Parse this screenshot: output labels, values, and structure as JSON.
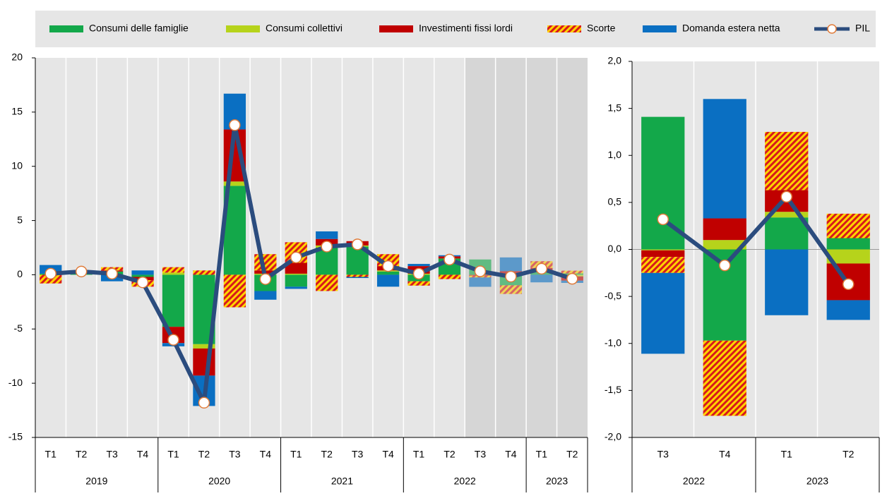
{
  "chart_data": [
    {
      "type": "bar",
      "stacked": true,
      "categories": [
        "T1",
        "T2",
        "T3",
        "T4",
        "T1",
        "T2",
        "T3",
        "T4",
        "T1",
        "T2",
        "T3",
        "T4",
        "T1",
        "T2",
        "T3",
        "T4",
        "T1",
        "T2"
      ],
      "years": [
        "2019",
        "2019",
        "2019",
        "2019",
        "2020",
        "2020",
        "2020",
        "2020",
        "2021",
        "2021",
        "2021",
        "2021",
        "2022",
        "2022",
        "2022",
        "2022",
        "2023",
        "2023"
      ],
      "series": [
        {
          "name": "Consumi delle famiglie",
          "color": "#13a84a",
          "values": [
            0.1,
            0.1,
            0.3,
            -0.2,
            -4.8,
            -6.4,
            8.2,
            -1.5,
            -1.1,
            2.5,
            2.6,
            0.3,
            -0.6,
            1.5,
            1.41,
            -0.97,
            0.34,
            0.12
          ]
        },
        {
          "name": "Consumi collettivi",
          "color": "#b6d31b",
          "values": [
            0,
            0,
            0,
            0,
            0.2,
            -0.4,
            0.4,
            0.1,
            0.1,
            0.2,
            0.1,
            0.1,
            0.1,
            0,
            -0.01,
            0.1,
            0.06,
            -0.15
          ]
        },
        {
          "name": "Investimenti fissi lordi",
          "color": "#c00000",
          "values": [
            0,
            0.1,
            0.1,
            -0.3,
            -1.5,
            -2.5,
            4.8,
            0.3,
            1.0,
            0.6,
            0.4,
            0.4,
            0.7,
            0.2,
            -0.07,
            0.23,
            0.23,
            -0.39
          ]
        },
        {
          "name": "Scorte",
          "color": "#d7191c",
          "hatch": "#ffd400",
          "values": [
            -0.8,
            0.1,
            0.3,
            -0.6,
            0.5,
            0.4,
            -3.0,
            1.5,
            1.9,
            -1.5,
            -0.2,
            1.1,
            -0.4,
            -0.4,
            -0.17,
            -0.8,
            0.62,
            0.26
          ]
        },
        {
          "name": "Domanda estera netta",
          "color": "#0a6fc2",
          "values": [
            0.8,
            0,
            -0.6,
            0.4,
            -0.3,
            -2.8,
            3.3,
            -0.8,
            -0.2,
            0.7,
            -0.1,
            -1.1,
            0.2,
            0.1,
            -0.86,
            1.27,
            -0.7,
            -0.21
          ]
        },
        {
          "name": "PIL",
          "type": "line",
          "color": "#2b4c7e",
          "marker_edge": "#e07b39",
          "values": [
            0.1,
            0.3,
            0.1,
            -0.7,
            -6.0,
            -11.8,
            13.8,
            -0.4,
            1.6,
            2.6,
            2.8,
            0.8,
            0.1,
            1.4,
            0.32,
            -0.17,
            0.56,
            -0.37
          ]
        }
      ],
      "ylim": [
        -15,
        20
      ],
      "yticks": [
        -15,
        -10,
        -5,
        0,
        5,
        10,
        15,
        20
      ],
      "grid": true
    },
    {
      "type": "bar",
      "stacked": true,
      "categories": [
        "T3",
        "T4",
        "T1",
        "T2"
      ],
      "years": [
        "2022",
        "2022",
        "2023",
        "2023"
      ],
      "series": [
        {
          "name": "Consumi delle famiglie",
          "color": "#13a84a",
          "values": [
            1.41,
            -0.97,
            0.34,
            0.12
          ]
        },
        {
          "name": "Consumi collettivi",
          "color": "#b6d31b",
          "values": [
            -0.01,
            0.1,
            0.06,
            -0.15
          ]
        },
        {
          "name": "Investimenti fissi lordi",
          "color": "#c00000",
          "values": [
            -0.07,
            0.23,
            0.23,
            -0.39
          ]
        },
        {
          "name": "Scorte",
          "color": "#d7191c",
          "hatch": "#ffd400",
          "values": [
            -0.17,
            -0.8,
            0.62,
            0.26
          ]
        },
        {
          "name": "Domanda estera netta",
          "color": "#0a6fc2",
          "values": [
            -0.86,
            1.27,
            -0.7,
            -0.21
          ]
        },
        {
          "name": "PIL",
          "type": "line",
          "color": "#2b4c7e",
          "marker_edge": "#e07b39",
          "values": [
            0.32,
            -0.17,
            0.56,
            -0.37
          ]
        }
      ],
      "ylim": [
        -2,
        2
      ],
      "yticks": [
        {
          "value": -2,
          "label": "-2,0"
        },
        {
          "value": -1.5,
          "label": "-1,5"
        },
        {
          "value": -1,
          "label": "-1,0"
        },
        {
          "value": -0.5,
          "label": "-0,5"
        },
        {
          "value": 0,
          "label": "0,0"
        },
        {
          "value": 0.5,
          "label": "0,5"
        },
        {
          "value": 1,
          "label": "1,0"
        },
        {
          "value": 1.5,
          "label": "1,5"
        },
        {
          "value": 2,
          "label": "2,0"
        }
      ],
      "grid": true
    }
  ]
}
